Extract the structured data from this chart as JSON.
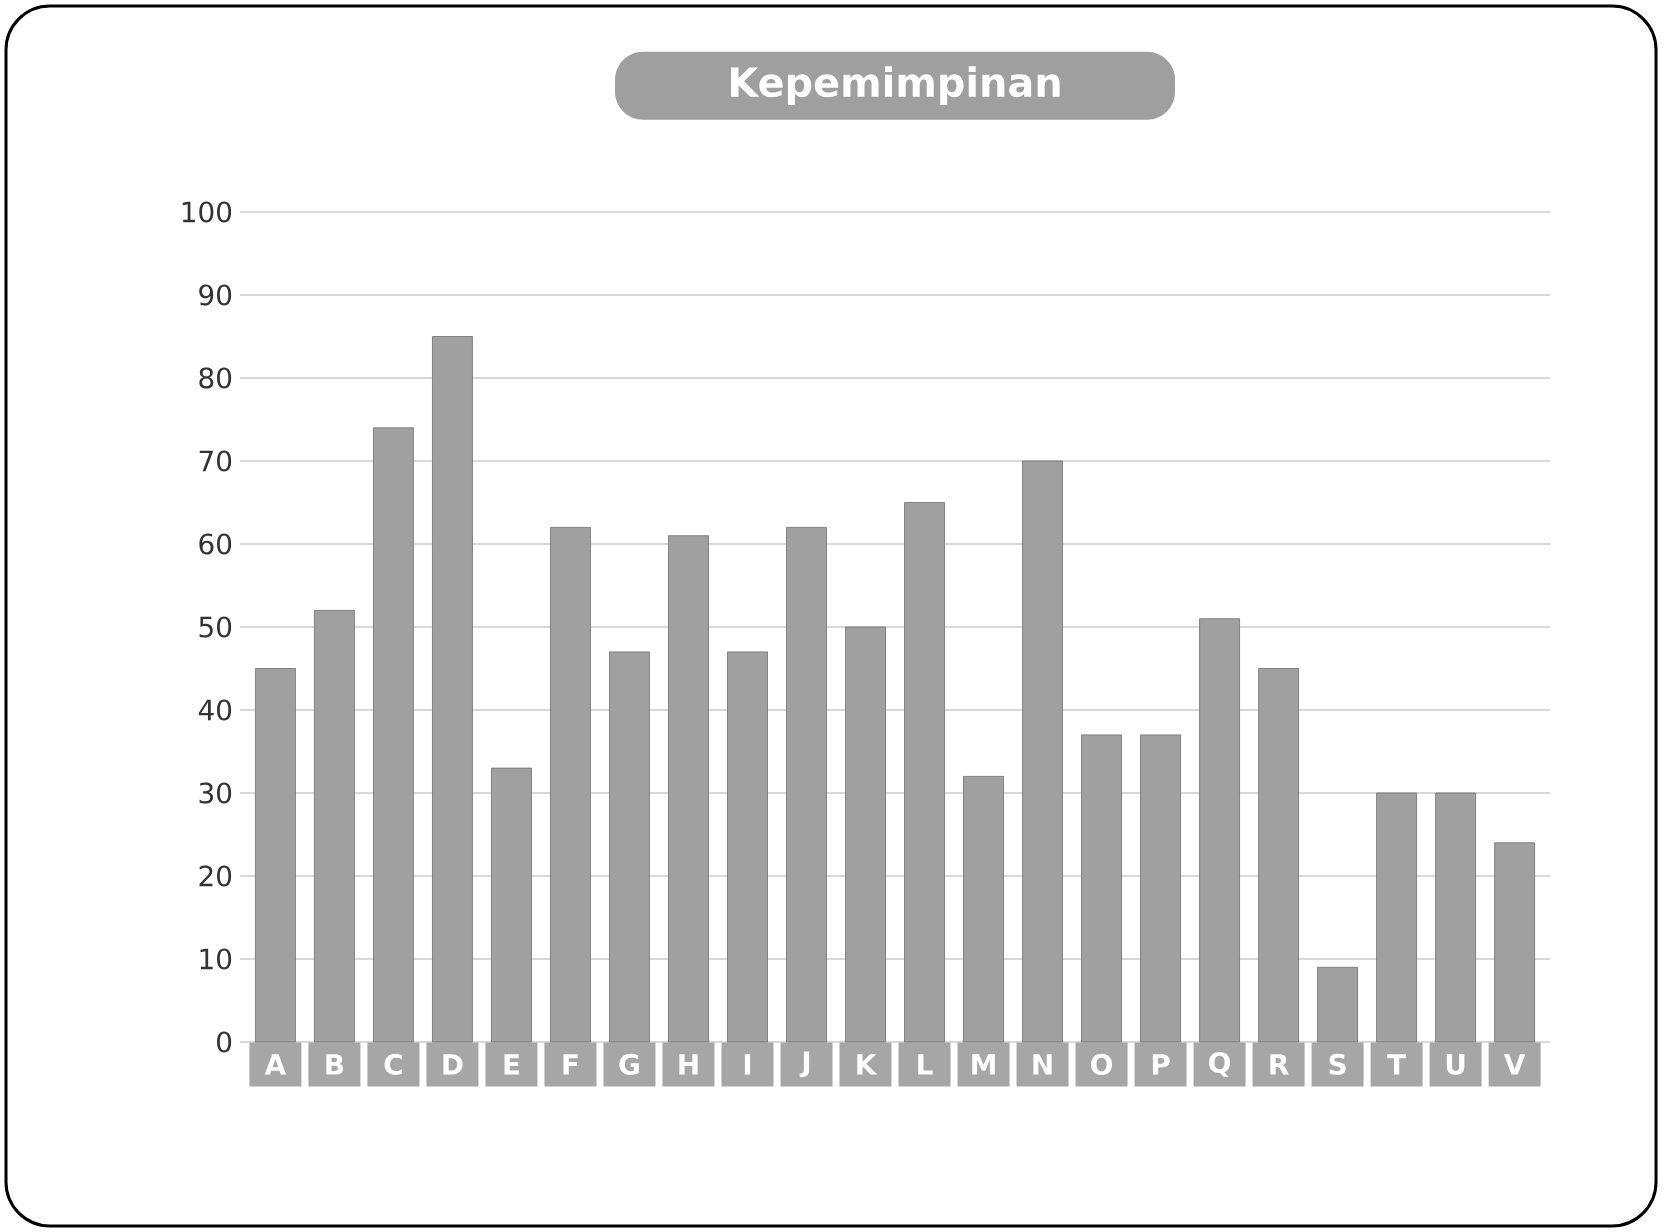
{
  "chart_data": {
    "type": "bar",
    "title": "Kepemimpinan",
    "categories": [
      "A",
      "B",
      "C",
      "D",
      "E",
      "F",
      "G",
      "H",
      "I",
      "J",
      "K",
      "L",
      "M",
      "N",
      "O",
      "P",
      "Q",
      "R",
      "S",
      "T",
      "U",
      "V"
    ],
    "values": [
      45,
      52,
      74,
      85,
      33,
      62,
      47,
      61,
      47,
      62,
      50,
      65,
      32,
      70,
      37,
      37,
      51,
      45,
      9,
      30,
      30,
      24
    ],
    "color": "#a0a0a0",
    "ylim": [
      0,
      100
    ],
    "yticks": [
      0,
      10,
      20,
      30,
      40,
      50,
      60,
      70,
      80,
      90,
      100
    ],
    "grid": "y"
  }
}
